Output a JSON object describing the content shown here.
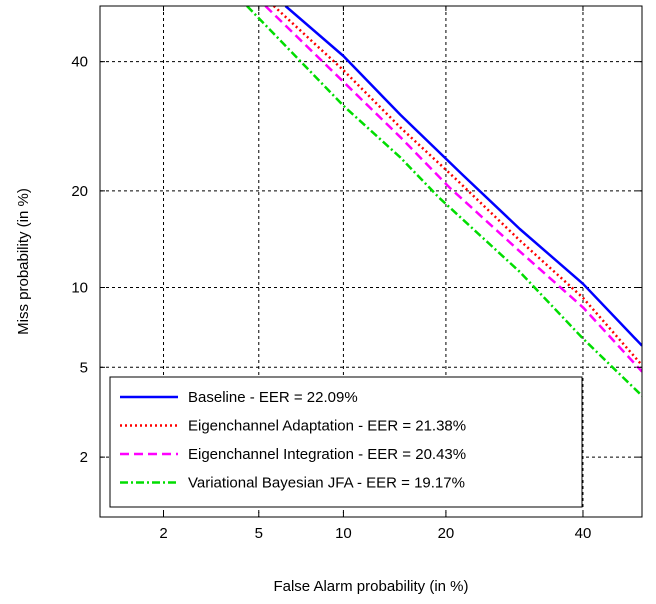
{
  "chart_data": {
    "type": "line",
    "title": "",
    "xlabel": "False Alarm probability (in %)",
    "ylabel": "Miss probability (in %)",
    "xscale": "probit",
    "yscale": "probit",
    "xlim": [
      1,
      50
    ],
    "ylim": [
      1,
      50
    ],
    "xticks": [
      2,
      5,
      10,
      20,
      40
    ],
    "yticks": [
      2,
      5,
      10,
      20,
      40
    ],
    "xtick_labels": [
      "2",
      "5",
      "10",
      "20",
      "40"
    ],
    "ytick_labels": [
      "2",
      "5",
      "10",
      "20",
      "40"
    ],
    "grid": true,
    "legend_position": "bottom-left",
    "series": [
      {
        "name": "Baseline - EER = 22.09%",
        "color": "#0000ff",
        "style": "solid",
        "points": [
          [
            6.3,
            50
          ],
          [
            10,
            41
          ],
          [
            15,
            31
          ],
          [
            22.09,
            22.09
          ],
          [
            30,
            15.5
          ],
          [
            40,
            10.3
          ],
          [
            50,
            6.1
          ]
        ]
      },
      {
        "name": "Eigenchannel Adaptation - EER = 21.38%",
        "color": "#ff0000",
        "style": "dotted",
        "points": [
          [
            5.7,
            50
          ],
          [
            10,
            38.5
          ],
          [
            15,
            29
          ],
          [
            21.38,
            21.38
          ],
          [
            30,
            14.3
          ],
          [
            40,
            9.2
          ],
          [
            50,
            5.1
          ]
        ]
      },
      {
        "name": "Eigenchannel Integration - EER = 20.43%",
        "color": "#ff00ff",
        "style": "dashed",
        "points": [
          [
            5.3,
            50
          ],
          [
            10,
            36.5
          ],
          [
            15,
            27.5
          ],
          [
            20.43,
            20.43
          ],
          [
            30,
            13.2
          ],
          [
            40,
            8.5
          ],
          [
            50,
            4.8
          ]
        ]
      },
      {
        "name": "Variational Bayesian JFA - EER = 19.17%",
        "color": "#00dd00",
        "style": "dashdot",
        "points": [
          [
            4.5,
            50
          ],
          [
            10,
            32.5
          ],
          [
            15,
            24.5
          ],
          [
            19.17,
            19.17
          ],
          [
            30,
            11.3
          ],
          [
            40,
            6.5
          ],
          [
            50,
            3.8
          ]
        ]
      }
    ]
  }
}
